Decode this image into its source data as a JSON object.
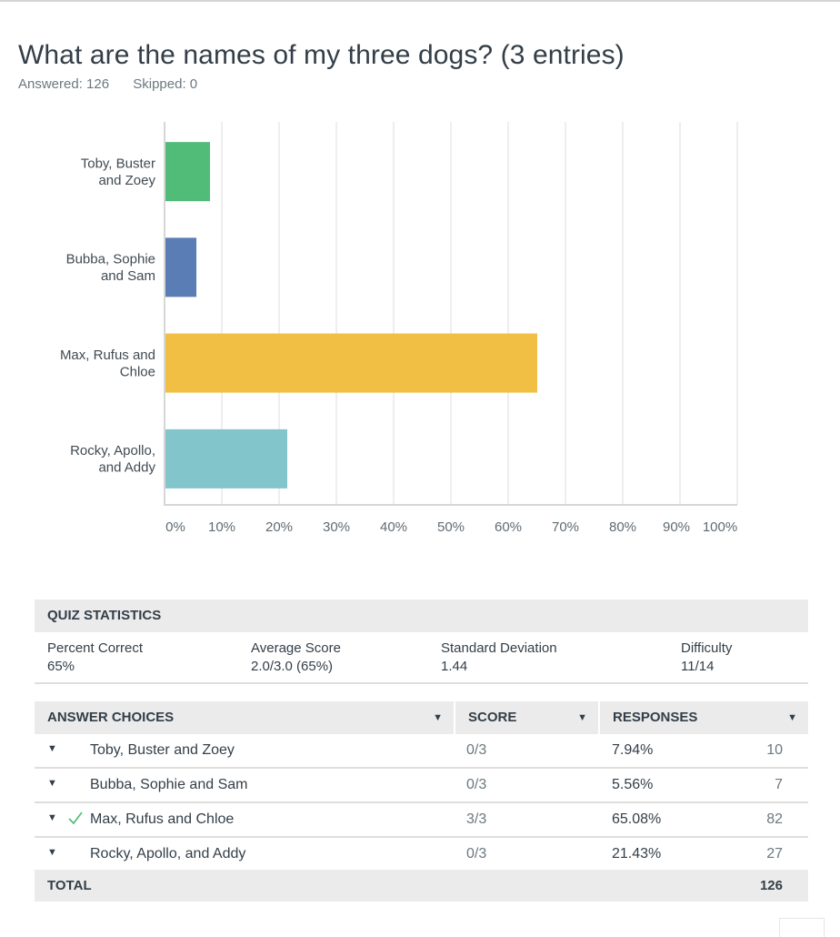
{
  "question": {
    "title": "What are the names of my three dogs? (3 entries)",
    "answered": "Answered: 126",
    "skipped": "Skipped: 0"
  },
  "chart_data": {
    "type": "bar",
    "orientation": "horizontal",
    "categories": [
      [
        "Toby, Buster",
        "and Zoey"
      ],
      [
        "Bubba, Sophie",
        "and Sam"
      ],
      [
        "Max, Rufus and",
        "Chloe"
      ],
      [
        "Rocky, Apollo,",
        "and Addy"
      ]
    ],
    "values": [
      7.94,
      5.56,
      65.08,
      21.43
    ],
    "colors": [
      "#51bc77",
      "#5b7db5",
      "#f0bf43",
      "#82c6cb"
    ],
    "xlim": [
      0,
      100
    ],
    "xticks": [
      "0%",
      "10%",
      "20%",
      "30%",
      "40%",
      "50%",
      "60%",
      "70%",
      "80%",
      "90%",
      "100%"
    ],
    "grid": true,
    "title": "",
    "xlabel": "",
    "ylabel": ""
  },
  "quiz_statistics": {
    "header": "QUIZ STATISTICS",
    "items": [
      {
        "label": "Percent Correct",
        "value": "65%"
      },
      {
        "label": "Average Score",
        "value": "2.0/3.0 (65%)"
      },
      {
        "label": "Standard Deviation",
        "value": "1.44"
      },
      {
        "label": "Difficulty",
        "value": "11/14"
      }
    ]
  },
  "answer_table": {
    "headers": {
      "choices": "ANSWER CHOICES",
      "score": "SCORE",
      "responses": "RESPONSES"
    },
    "rows": [
      {
        "choice": "Toby, Buster and Zoey",
        "score": "0/3",
        "percent": "7.94%",
        "count": "10",
        "correct": false
      },
      {
        "choice": "Bubba, Sophie and Sam",
        "score": "0/3",
        "percent": "5.56%",
        "count": "7",
        "correct": false
      },
      {
        "choice": "Max, Rufus and Chloe",
        "score": "3/3",
        "percent": "65.08%",
        "count": "82",
        "correct": true
      },
      {
        "choice": "Rocky, Apollo, and Addy",
        "score": "0/3",
        "percent": "21.43%",
        "count": "27",
        "correct": false
      }
    ],
    "total_label": "TOTAL",
    "total_value": "126",
    "check_color": "#4cbd72"
  }
}
